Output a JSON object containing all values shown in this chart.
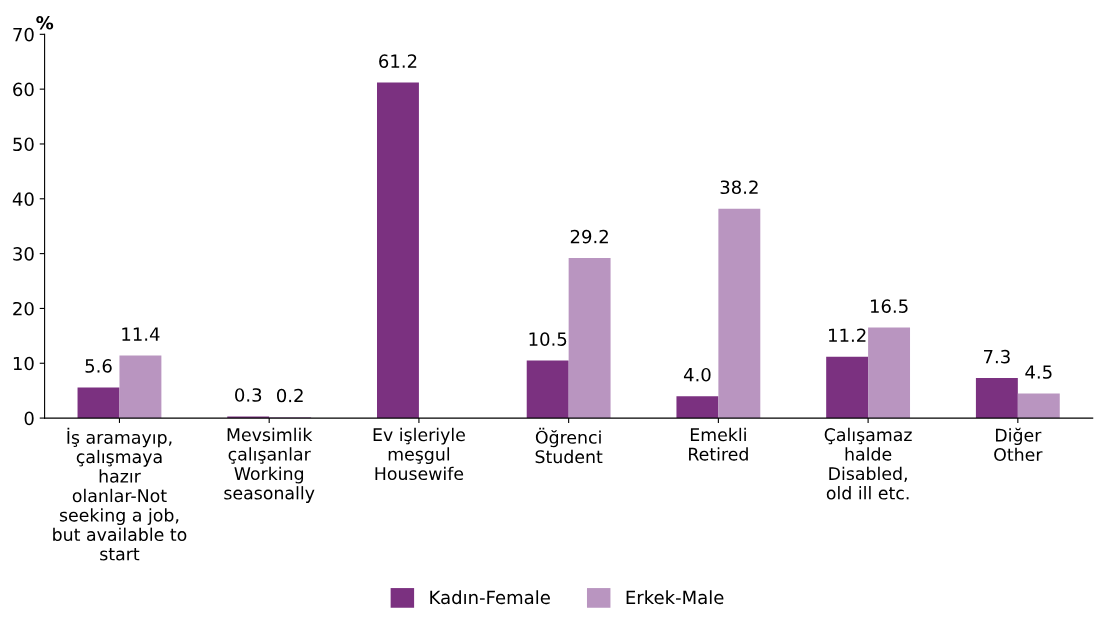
{
  "chart_data": {
    "type": "bar",
    "ylabel": "%",
    "categories": [
      "İş aramayıp,\nçalışmaya\nhazır\nolanlar-Not\nseeking a job,\nbut available to\nstart",
      "Mevsimlik\nçalışanlar\nWorking\nseasonally",
      "Ev işleriyle\nmeşgul\nHousewife",
      "Öğrenci\nStudent",
      "Emekli\nRetired",
      "Çalışamaz\nhalde\nDisabled,\nold ill etc.",
      "Diğer\nOther"
    ],
    "series": [
      {
        "name": "Kadın-Female",
        "color": "#7b3180",
        "values": [
          5.6,
          0.3,
          61.2,
          10.5,
          4.0,
          11.2,
          7.3
        ],
        "value_labels": [
          "5.6",
          "0.3",
          "61.2",
          "10.5",
          "4.0",
          "11.2",
          "7.3"
        ]
      },
      {
        "name": "Erkek-Male",
        "color": "#b995c0",
        "values": [
          11.4,
          0.2,
          null,
          29.2,
          38.2,
          16.5,
          4.5
        ],
        "value_labels": [
          "11.4",
          "0.2",
          null,
          "29.2",
          "38.2",
          "16.5",
          "4.5"
        ]
      }
    ],
    "ylim": [
      0,
      70
    ],
    "yticks": [
      0,
      10,
      20,
      30,
      40,
      50,
      60,
      70
    ],
    "grid": false,
    "legend": "bottom"
  }
}
